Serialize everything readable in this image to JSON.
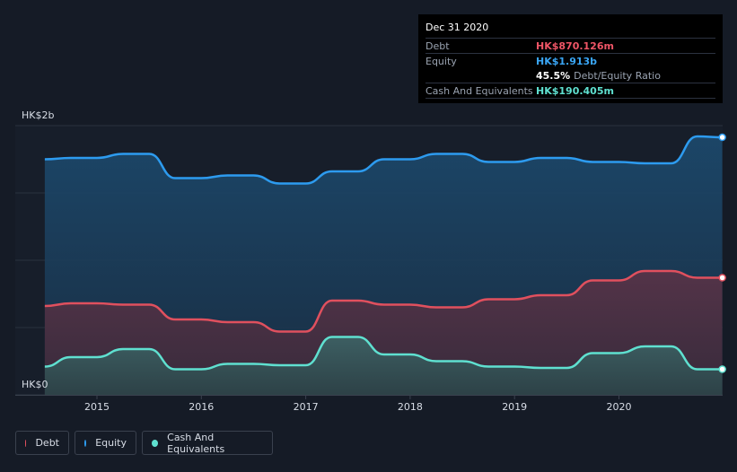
{
  "tooltip": {
    "date": "Dec 31 2020",
    "debt_label": "Debt",
    "debt_value": "HK$870.126m",
    "equity_label": "Equity",
    "equity_value": "HK$1.913b",
    "ratio_value": "45.5%",
    "ratio_label": "Debt/Equity Ratio",
    "cash_label": "Cash And Equivalents",
    "cash_value": "HK$190.405m"
  },
  "legend": {
    "debt": "Debt",
    "equity": "Equity",
    "cash": "Cash And Equivalents"
  },
  "colors": {
    "debt": "#e0505e",
    "equity": "#2d9bef",
    "cash": "#5fe0d0"
  },
  "chart_data": {
    "type": "area",
    "ylim_billions": [
      0,
      2
    ],
    "y_tick_labels": [
      "HK$0",
      "HK$2b"
    ],
    "x_tick_labels": [
      "2015",
      "2016",
      "2017",
      "2018",
      "2019",
      "2020"
    ],
    "x_range": [
      2014.5,
      2020.99
    ],
    "series": [
      {
        "name": "Equity",
        "unit": "HK$b",
        "x": [
          2014.5,
          2014.75,
          2015.0,
          2015.25,
          2015.5,
          2015.75,
          2016.0,
          2016.25,
          2016.5,
          2016.75,
          2017.0,
          2017.25,
          2017.5,
          2017.75,
          2018.0,
          2018.25,
          2018.5,
          2018.75,
          2019.0,
          2019.25,
          2019.5,
          2019.75,
          2020.0,
          2020.25,
          2020.5,
          2020.75,
          2020.99
        ],
        "values": [
          1.75,
          1.76,
          1.76,
          1.79,
          1.79,
          1.61,
          1.61,
          1.63,
          1.63,
          1.57,
          1.57,
          1.66,
          1.66,
          1.75,
          1.75,
          1.79,
          1.79,
          1.73,
          1.73,
          1.76,
          1.76,
          1.73,
          1.73,
          1.72,
          1.72,
          1.92,
          1.913
        ]
      },
      {
        "name": "Debt",
        "unit": "HK$b",
        "x": [
          2014.5,
          2014.75,
          2015.0,
          2015.25,
          2015.5,
          2015.75,
          2016.0,
          2016.25,
          2016.5,
          2016.75,
          2017.0,
          2017.25,
          2017.5,
          2017.75,
          2018.0,
          2018.25,
          2018.5,
          2018.75,
          2019.0,
          2019.25,
          2019.5,
          2019.75,
          2020.0,
          2020.25,
          2020.5,
          2020.75,
          2020.99
        ],
        "values": [
          0.66,
          0.68,
          0.68,
          0.67,
          0.67,
          0.56,
          0.56,
          0.54,
          0.54,
          0.47,
          0.47,
          0.7,
          0.7,
          0.67,
          0.67,
          0.65,
          0.65,
          0.71,
          0.71,
          0.74,
          0.74,
          0.85,
          0.85,
          0.92,
          0.92,
          0.87,
          0.87
        ]
      },
      {
        "name": "Cash And Equivalents",
        "unit": "HK$b",
        "x": [
          2014.5,
          2014.75,
          2015.0,
          2015.25,
          2015.5,
          2015.75,
          2016.0,
          2016.25,
          2016.5,
          2016.75,
          2017.0,
          2017.25,
          2017.5,
          2017.75,
          2018.0,
          2018.25,
          2018.5,
          2018.75,
          2019.0,
          2019.25,
          2019.5,
          2019.75,
          2020.0,
          2020.25,
          2020.5,
          2020.75,
          2020.99
        ],
        "values": [
          0.21,
          0.28,
          0.28,
          0.34,
          0.34,
          0.19,
          0.19,
          0.23,
          0.23,
          0.22,
          0.22,
          0.43,
          0.43,
          0.3,
          0.3,
          0.25,
          0.25,
          0.21,
          0.21,
          0.2,
          0.2,
          0.31,
          0.31,
          0.36,
          0.36,
          0.19,
          0.19
        ]
      }
    ]
  }
}
